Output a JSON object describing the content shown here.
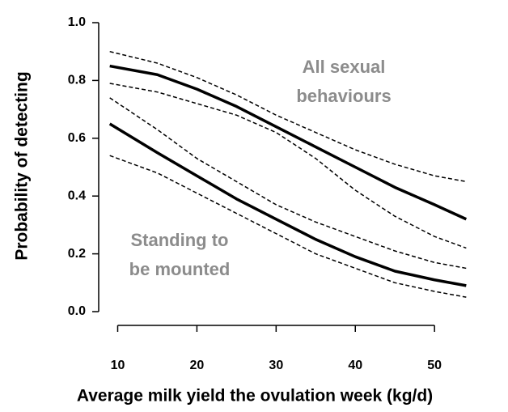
{
  "chart_data": {
    "type": "line",
    "xlabel": "Average milk yield the ovulation week (kg/d)",
    "ylabel": "Probability of detecting",
    "annotations": [
      [
        "All sexual",
        "behaviours"
      ],
      [
        "Standing to",
        "be mounted"
      ]
    ],
    "x": [
      9,
      15,
      20,
      25,
      30,
      35,
      40,
      45,
      50,
      54
    ],
    "series": [
      {
        "color": "#000000",
        "dashed": false,
        "values": [
          0.85,
          0.82,
          0.77,
          0.71,
          0.64,
          0.57,
          0.5,
          0.43,
          0.37,
          0.32
        ]
      },
      {
        "color": "#000000",
        "dashed": true,
        "values": [
          0.9,
          0.86,
          0.81,
          0.75,
          0.68,
          0.62,
          0.56,
          0.51,
          0.47,
          0.45
        ]
      },
      {
        "color": "#000000",
        "dashed": true,
        "values": [
          0.79,
          0.76,
          0.72,
          0.68,
          0.62,
          0.53,
          0.42,
          0.33,
          0.26,
          0.22
        ]
      },
      {
        "color": "#000000",
        "dashed": false,
        "values": [
          0.65,
          0.55,
          0.47,
          0.39,
          0.32,
          0.25,
          0.19,
          0.14,
          0.11,
          0.09
        ]
      },
      {
        "color": "#000000",
        "dashed": true,
        "values": [
          0.74,
          0.63,
          0.53,
          0.45,
          0.37,
          0.31,
          0.26,
          0.21,
          0.17,
          0.15
        ]
      },
      {
        "color": "#000000",
        "dashed": true,
        "values": [
          0.54,
          0.48,
          0.41,
          0.34,
          0.27,
          0.2,
          0.15,
          0.1,
          0.07,
          0.05
        ]
      }
    ],
    "xlim": [
      7.6,
      55.6
    ],
    "xticks": [
      10,
      20,
      30,
      40,
      50
    ],
    "ylim": [
      0,
      1
    ],
    "yticks": [
      {
        "value": 0,
        "label": "0.0"
      },
      0.2,
      0.4,
      0.6,
      0.8,
      {
        "value": 1,
        "label": "1.0"
      }
    ]
  }
}
